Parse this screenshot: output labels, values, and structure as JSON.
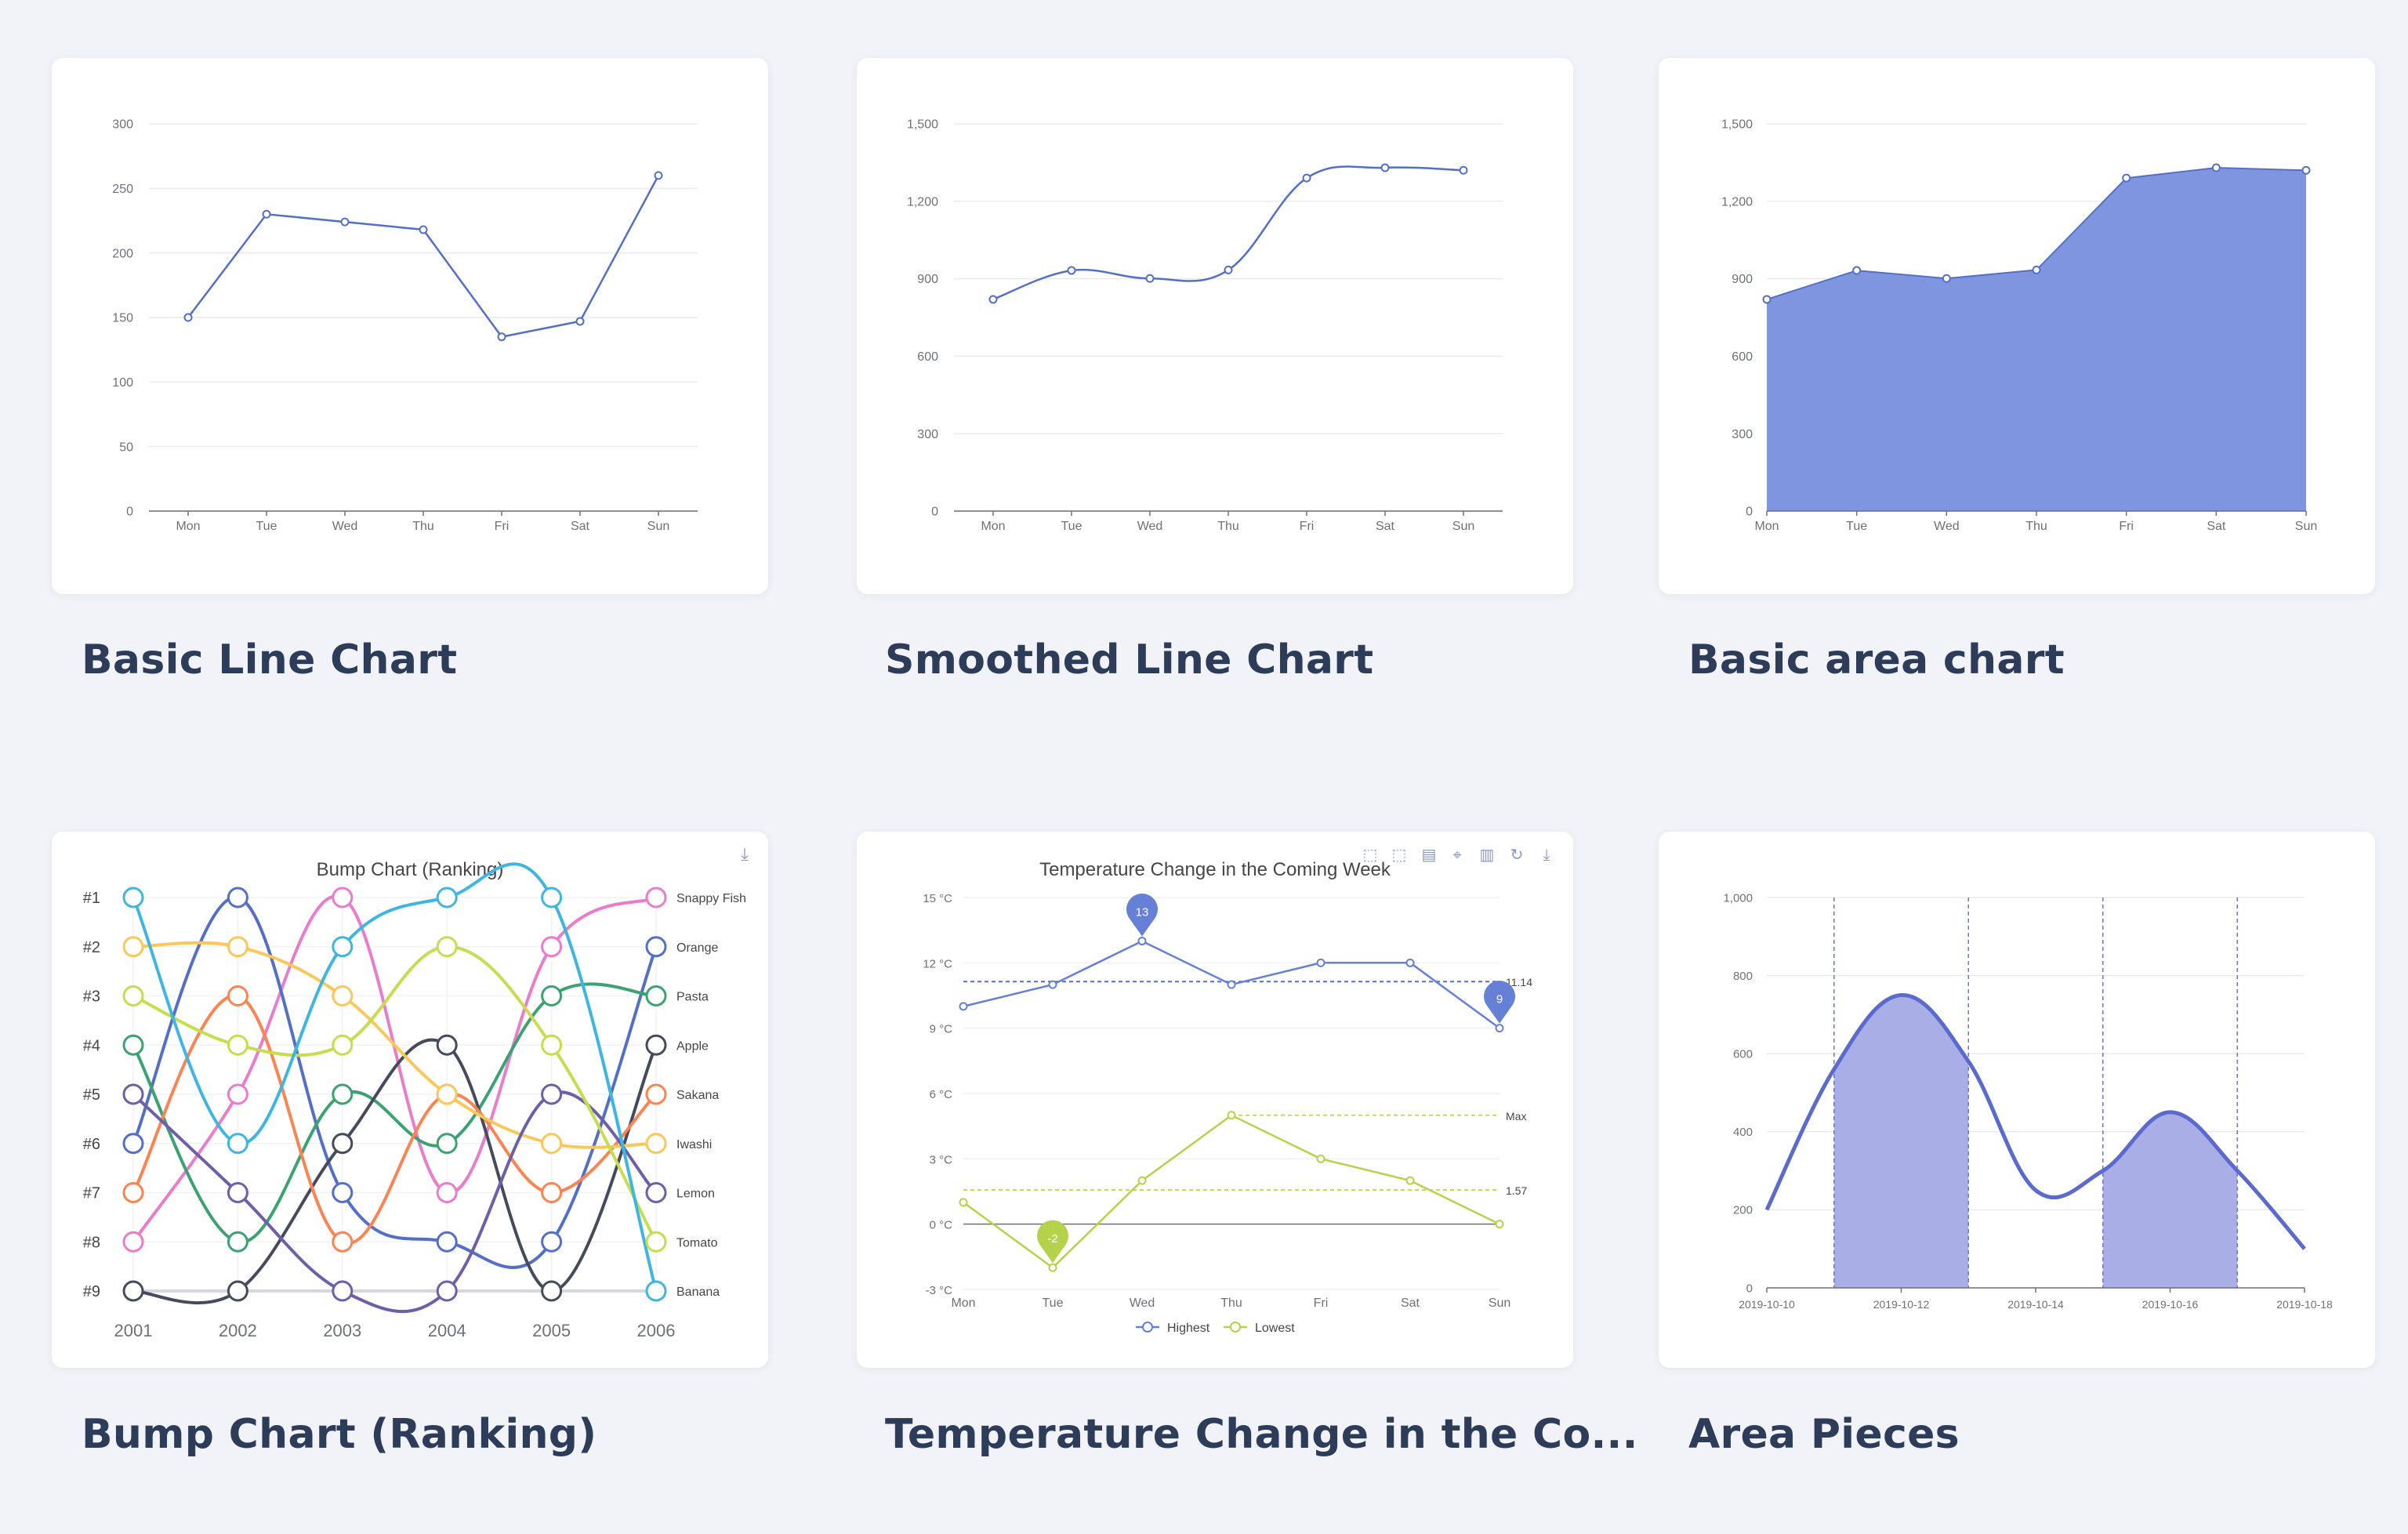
{
  "gallery": {
    "items": [
      {
        "caption": "Basic Line Chart"
      },
      {
        "caption": "Smoothed Line Chart"
      },
      {
        "caption": "Basic area chart"
      },
      {
        "caption": "Bump Chart (Ranking)"
      },
      {
        "caption": "Temperature Change in the Co..."
      },
      {
        "caption": "Area Pieces"
      }
    ]
  },
  "colors": {
    "background": "#f2f3f8",
    "primary": "#5470c6",
    "secondary": "#91cc75",
    "caption": "#2d3c59"
  },
  "chart_data": [
    {
      "type": "line",
      "title": "",
      "categories": [
        "Mon",
        "Tue",
        "Wed",
        "Thu",
        "Fri",
        "Sat",
        "Sun"
      ],
      "values": [
        150,
        230,
        224,
        218,
        135,
        147,
        260
      ],
      "ylim": [
        0,
        300
      ],
      "yticks": [
        "0",
        "50",
        "100",
        "150",
        "200",
        "250",
        "300"
      ],
      "grid": true
    },
    {
      "type": "line",
      "title": "",
      "smooth": true,
      "categories": [
        "Mon",
        "Tue",
        "Wed",
        "Thu",
        "Fri",
        "Sat",
        "Sun"
      ],
      "values": [
        820,
        932,
        901,
        934,
        1290,
        1330,
        1320
      ],
      "ylim": [
        0,
        1500
      ],
      "yticks": [
        "0",
        "300",
        "600",
        "900",
        "1,200",
        "1,500"
      ],
      "grid": true
    },
    {
      "type": "area",
      "title": "",
      "categories": [
        "Mon",
        "Tue",
        "Wed",
        "Thu",
        "Fri",
        "Sat",
        "Sun"
      ],
      "values": [
        820,
        932,
        901,
        934,
        1290,
        1330,
        1320
      ],
      "ylim": [
        0,
        1500
      ],
      "yticks": [
        "0",
        "300",
        "600",
        "900",
        "1,200",
        "1,500"
      ],
      "grid": true
    },
    {
      "type": "line",
      "title": "Bump Chart (Ranking)",
      "smooth": true,
      "categories": [
        "2001",
        "2002",
        "2003",
        "2004",
        "2005",
        "2006"
      ],
      "yticks": [
        "#1",
        "#2",
        "#3",
        "#4",
        "#5",
        "#6",
        "#7",
        "#8",
        "#9"
      ],
      "ylim": [
        1,
        9
      ],
      "inverse_y": true,
      "toolbox": [
        "download-icon"
      ],
      "series": [
        {
          "name": "Snappy Fish",
          "color": "#ea7ccc",
          "values": [
            8,
            5,
            1,
            7,
            2,
            1
          ]
        },
        {
          "name": "Orange",
          "color": "#5470c6",
          "values": [
            6,
            1,
            7,
            8,
            8,
            2
          ]
        },
        {
          "name": "Pasta",
          "color": "#3ba272",
          "values": [
            4,
            8,
            5,
            6,
            3,
            3
          ]
        },
        {
          "name": "Apple",
          "color": "#464b5c",
          "values": [
            9,
            9,
            6,
            4,
            9,
            4
          ]
        },
        {
          "name": "Sakana",
          "color": "#fc8452",
          "values": [
            7,
            3,
            8,
            5,
            7,
            5
          ]
        },
        {
          "name": "Iwashi",
          "color": "#fac858",
          "values": [
            2,
            2,
            3,
            5,
            6,
            6
          ]
        },
        {
          "name": "Lemon",
          "color": "#6e5fa8",
          "values": [
            5,
            7,
            9,
            9,
            5,
            7
          ]
        },
        {
          "name": "Tomato",
          "color": "#c7dc4f",
          "values": [
            3,
            4,
            4,
            2,
            4,
            8
          ]
        },
        {
          "name": "Banana",
          "color": "#3fb6e0",
          "values": [
            1,
            6,
            2,
            1,
            1,
            9
          ]
        }
      ]
    },
    {
      "type": "line",
      "title": "Temperature Change in the Coming Week",
      "categories": [
        "Mon",
        "Tue",
        "Wed",
        "Thu",
        "Fri",
        "Sat",
        "Sun"
      ],
      "ylim": [
        -3,
        15
      ],
      "yticks": [
        "-3 °C",
        "0 °C",
        "3 °C",
        "6 °C",
        "9 °C",
        "12 °C",
        "15 °C"
      ],
      "toolbox": [
        "zoom-icon",
        "zoom-reset-icon",
        "data-view-icon",
        "line-type-icon",
        "bar-type-icon",
        "restore-icon",
        "download-icon"
      ],
      "legend": "bottom",
      "series": [
        {
          "name": "Highest",
          "color": "#5470c6",
          "values": [
            10,
            11,
            13,
            11,
            12,
            12,
            9
          ],
          "mark_points": [
            {
              "label": "13",
              "category": "Wed",
              "value": 13
            },
            {
              "label": "9",
              "category": "Sun",
              "value": 9
            }
          ],
          "mark_line": {
            "label": "11.14",
            "value": 11.14
          }
        },
        {
          "name": "Lowest",
          "color": "#91cc75",
          "values": [
            1,
            -2,
            2,
            5,
            3,
            2,
            0
          ],
          "mark_points": [
            {
              "label": "-2",
              "category": "Tue",
              "value": -2
            }
          ],
          "mark_line_avg": {
            "label": "1.57",
            "value": 1.57
          },
          "mark_line_max": {
            "label": "Max",
            "value": 5
          }
        }
      ]
    },
    {
      "type": "area",
      "title": "Area Pieces",
      "smooth": true,
      "x": [
        "2019-10-10",
        "2019-10-11",
        "2019-10-12",
        "2019-10-13",
        "2019-10-14",
        "2019-10-15",
        "2019-10-16",
        "2019-10-17",
        "2019-10-18"
      ],
      "xticks": [
        "2019-10-10",
        "2019-10-12",
        "2019-10-14",
        "2019-10-16",
        "2019-10-18"
      ],
      "values": [
        200,
        560,
        750,
        580,
        250,
        300,
        450,
        300,
        100
      ],
      "ylim": [
        0,
        1000
      ],
      "yticks": [
        "0",
        "200",
        "400",
        "600",
        "800",
        "1,000"
      ],
      "pieces": [
        [
          "2019-10-11",
          "2019-10-13"
        ],
        [
          "2019-10-15",
          "2019-10-17"
        ]
      ]
    }
  ]
}
